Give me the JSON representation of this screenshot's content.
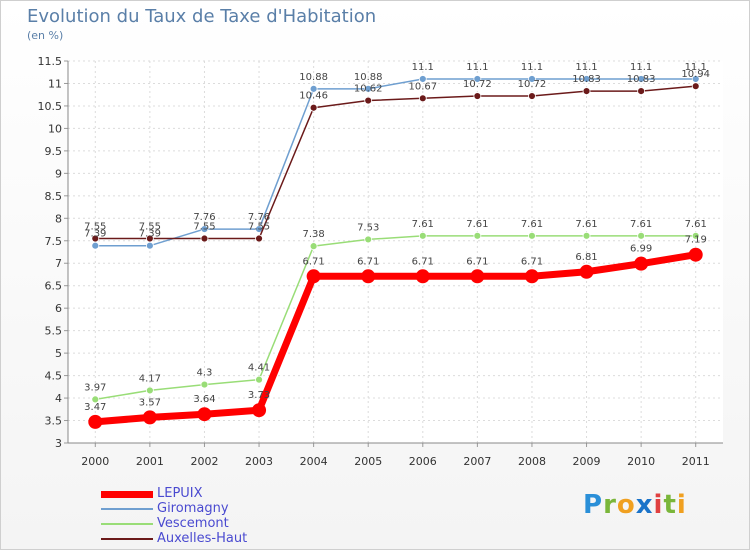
{
  "header": {
    "title": "Evolution du Taux de Taxe d'Habitation",
    "subtitle": "(en %)"
  },
  "chart_data": {
    "type": "line",
    "title": "Evolution du Taux de Taxe d'Habitation",
    "ylabel": "(en %)",
    "xlabel": "",
    "x": [
      "2000",
      "2001",
      "2002",
      "2003",
      "2004",
      "2005",
      "2006",
      "2007",
      "2008",
      "2009",
      "2010",
      "2011"
    ],
    "ylim": [
      3,
      11.5
    ],
    "yticks": [
      "3",
      "3.5",
      "4",
      "4.5",
      "5",
      "5.5",
      "6",
      "6.5",
      "7",
      "7.5",
      "8",
      "8.5",
      "9",
      "9.5",
      "10",
      "10.5",
      "11",
      "11.5"
    ],
    "grid": true,
    "legend_position": "bottom-left",
    "series": [
      {
        "name": "LEPUIX",
        "color": "#ff0000",
        "values": [
          3.47,
          3.57,
          3.64,
          3.73,
          6.71,
          6.71,
          6.71,
          6.71,
          6.71,
          6.81,
          6.99,
          7.19
        ],
        "labels": [
          "3.47",
          "3.57",
          "3.64",
          "3.73",
          "6.71",
          "6.71",
          "6.71",
          "6.71",
          "6.71",
          "6.81",
          "6.99",
          "7.19"
        ]
      },
      {
        "name": "Giromagny",
        "color": "#6f9fd0",
        "values": [
          7.39,
          7.39,
          7.76,
          7.76,
          10.88,
          10.88,
          11.1,
          11.1,
          11.1,
          11.1,
          11.1,
          11.1
        ],
        "labels": [
          "7.39",
          "7.39",
          "7.76",
          "7.76",
          "10.88",
          "10.88",
          "11.1",
          "11.1",
          "11.1",
          "11.1",
          "11.1",
          "11.1"
        ]
      },
      {
        "name": "Vescemont",
        "color": "#99dd77",
        "values": [
          3.97,
          4.17,
          4.3,
          4.41,
          7.38,
          7.53,
          7.61,
          7.61,
          7.61,
          7.61,
          7.61,
          7.61
        ],
        "labels": [
          "3.97",
          "4.17",
          "4.3",
          "4.41",
          "7.38",
          "7.53",
          "7.61",
          "7.61",
          "7.61",
          "7.61",
          "7.61",
          "7.61"
        ]
      },
      {
        "name": "Auxelles-Haut",
        "color": "#6b1a1a",
        "values": [
          7.55,
          7.55,
          7.55,
          7.55,
          10.46,
          10.62,
          10.67,
          10.72,
          10.72,
          10.83,
          10.83,
          10.94
        ],
        "labels": [
          "7.55",
          "7.55",
          "7.55",
          "7.55",
          "10.46",
          "10.62",
          "10.67",
          "10.72",
          "10.72",
          "10.83",
          "10.83",
          "10.94"
        ]
      }
    ]
  },
  "legend": {
    "items": [
      {
        "label": "LEPUIX",
        "color": "#ff0000"
      },
      {
        "label": "Giromagny",
        "color": "#6f9fd0"
      },
      {
        "label": "Vescemont",
        "color": "#99dd77"
      },
      {
        "label": "Auxelles-Haut",
        "color": "#6b1a1a"
      }
    ]
  },
  "logo": {
    "letters": [
      "P",
      "r",
      "o",
      "x",
      "i",
      "t",
      "i"
    ],
    "colors": [
      "#2a8fd8",
      "#7ab63a",
      "#f0a020",
      "#1a73c9",
      "#e04040",
      "#7ab63a",
      "#f0a020"
    ]
  }
}
